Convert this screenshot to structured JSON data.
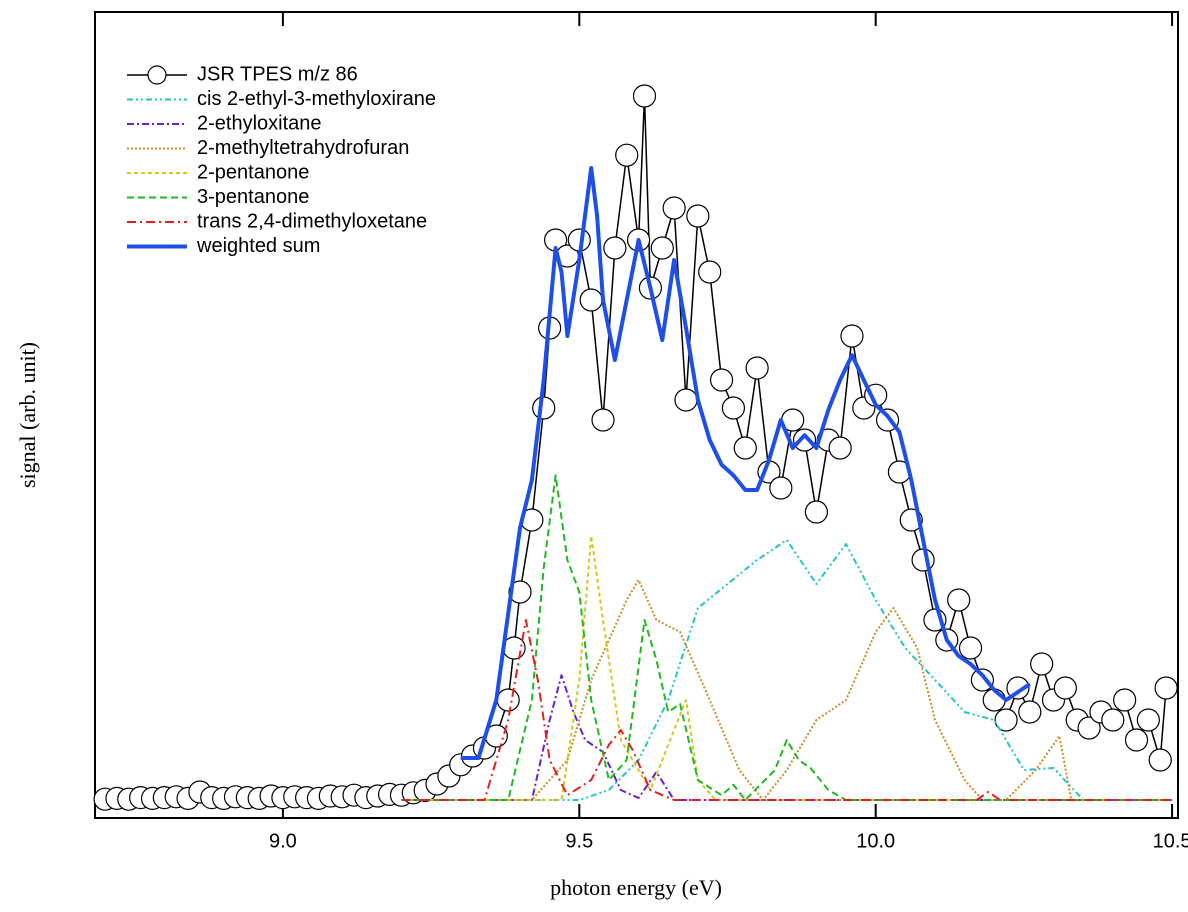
{
  "chart_data": {
    "type": "line",
    "xlabel": "photon energy (eV)",
    "ylabel": "signal (arb. unit)",
    "xlim": [
      8.683,
      10.51
    ],
    "ylim": [
      -2.25,
      98.5
    ],
    "xticks": [
      {
        "value": 9,
        "label": "9.0"
      },
      9.5,
      {
        "value": 10,
        "label": "10.0"
      },
      10.5
    ],
    "legend": "upper-left",
    "series": [
      {
        "name": "JSR TPES m/z 86",
        "color": "#000000",
        "style": "markers",
        "x": [
          8.7,
          8.72,
          8.74,
          8.76,
          8.78,
          8.8,
          8.82,
          8.84,
          8.86,
          8.88,
          8.9,
          8.92,
          8.94,
          8.96,
          8.98,
          9.0,
          9.02,
          9.04,
          9.06,
          9.08,
          9.1,
          9.12,
          9.14,
          9.16,
          9.18,
          9.2,
          9.22,
          9.24,
          9.26,
          9.28,
          9.3,
          9.32,
          9.34,
          9.36,
          9.38,
          9.39,
          9.4,
          9.42,
          9.44,
          9.45,
          9.46,
          9.48,
          9.5,
          9.52,
          9.54,
          9.56,
          9.58,
          9.6,
          9.61,
          9.62,
          9.64,
          9.66,
          9.68,
          9.7,
          9.72,
          9.74,
          9.76,
          9.78,
          9.8,
          9.82,
          9.84,
          9.86,
          9.88,
          9.9,
          9.92,
          9.94,
          9.96,
          9.98,
          10.0,
          10.02,
          10.04,
          10.06,
          10.08,
          10.1,
          10.12,
          10.14,
          10.16,
          10.18,
          10.2,
          10.22,
          10.24,
          10.26,
          10.28,
          10.3,
          10.32,
          10.34,
          10.36,
          10.38,
          10.4,
          10.42,
          10.44,
          10.46,
          10.48,
          10.49
        ],
        "values": [
          0.1,
          0.2,
          0.1,
          0.3,
          0.2,
          0.3,
          0.4,
          0.2,
          1.0,
          0.3,
          0.2,
          0.4,
          0.3,
          0.2,
          0.5,
          0.3,
          0.4,
          0.3,
          0.2,
          0.5,
          0.4,
          0.6,
          0.3,
          0.5,
          0.7,
          0.6,
          0.9,
          1.2,
          2.0,
          3.0,
          4.4,
          5.5,
          6.5,
          8,
          12.5,
          19,
          26,
          35,
          49,
          59,
          70,
          68,
          70,
          62.5,
          47.5,
          69,
          80.6,
          70,
          88,
          64,
          69,
          74,
          50,
          73,
          66,
          52.5,
          49,
          44,
          54,
          41,
          39,
          47.5,
          45,
          36,
          45,
          44,
          58,
          49,
          50.6,
          47.5,
          41,
          35,
          30,
          22.5,
          20,
          25,
          19,
          15,
          12.5,
          10,
          14,
          11,
          17,
          12.5,
          14,
          10,
          9,
          11,
          10,
          12.5,
          7.5,
          10,
          5,
          14
        ]
      },
      {
        "name": "cis 2-ethyl-3-methyloxirane",
        "color": "#22c5c5",
        "style": "dash-dot-dot",
        "x": [
          9.2,
          9.5,
          9.55,
          9.6,
          9.65,
          9.7,
          9.75,
          9.8,
          9.85,
          9.9,
          9.95,
          10.0,
          10.05,
          10.1,
          10.15,
          10.2,
          10.25,
          10.3,
          10.35,
          10.5
        ],
        "values": [
          0,
          0,
          1.25,
          5,
          12.5,
          24,
          27,
          30,
          32.5,
          27,
          32,
          25,
          19,
          15,
          11,
          10,
          3.75,
          4,
          0,
          0
        ]
      },
      {
        "name": "2-ethyloxitane",
        "color": "#6a1fc8",
        "style": "dash-dot",
        "x": [
          9.2,
          9.42,
          9.45,
          9.47,
          9.49,
          9.51,
          9.54,
          9.57,
          9.6,
          9.63,
          9.66,
          10.5
        ],
        "values": [
          0,
          0,
          10,
          15.6,
          11,
          7.5,
          6,
          1.25,
          0.25,
          3.5,
          0,
          0
        ]
      },
      {
        "name": "2-methyltetrahydrofuran",
        "color": "#d08c20",
        "style": "dotted",
        "x": [
          9.2,
          9.42,
          9.48,
          9.52,
          9.55,
          9.58,
          9.6,
          9.63,
          9.67,
          9.72,
          9.77,
          9.81,
          9.85,
          9.9,
          9.95,
          10.0,
          10.03,
          10.07,
          10.1,
          10.15,
          10.18,
          10.22,
          10.27,
          10.31,
          10.33,
          10.5
        ],
        "values": [
          0,
          0,
          5,
          15,
          20,
          25,
          27.5,
          22.5,
          21,
          12.5,
          3.75,
          0,
          3.75,
          10,
          12.5,
          21,
          24,
          19,
          10,
          2.5,
          0,
          0,
          3.75,
          8,
          0,
          0
        ]
      },
      {
        "name": "2-pentanone",
        "color": "#d4c620",
        "style": "short-dash",
        "x": [
          9.2,
          9.47,
          9.5,
          9.52,
          9.54,
          9.57,
          9.62,
          9.66,
          9.68,
          9.7,
          9.73,
          10.5
        ],
        "values": [
          0,
          0,
          15,
          33,
          22.5,
          7.5,
          1.25,
          8.75,
          12.5,
          2.5,
          0,
          0
        ]
      },
      {
        "name": "3-pentanone",
        "color": "#22b822",
        "style": "dashed",
        "x": [
          9.2,
          9.38,
          9.42,
          9.44,
          9.46,
          9.48,
          9.5,
          9.52,
          9.55,
          9.58,
          9.61,
          9.63,
          9.65,
          9.67,
          9.7,
          9.74,
          9.76,
          9.78,
          9.83,
          9.85,
          9.87,
          9.89,
          9.92,
          9.95,
          10.5
        ],
        "values": [
          0,
          0,
          12.5,
          29,
          40.6,
          30,
          26,
          12.5,
          2.5,
          5,
          22.5,
          17.5,
          11,
          12,
          2.5,
          0.6,
          1.9,
          0,
          3.75,
          7.5,
          5,
          4,
          1.25,
          0,
          0
        ]
      },
      {
        "name": "trans 2,4-dimethyloxetane",
        "color": "#e02020",
        "style": "long-dash-dot",
        "x": [
          9.2,
          9.34,
          9.38,
          9.41,
          9.43,
          9.45,
          9.48,
          9.52,
          9.55,
          9.57,
          9.59,
          9.62,
          9.66,
          10.17,
          10.19,
          10.21,
          10.5
        ],
        "values": [
          0,
          0,
          10,
          22.5,
          15,
          5,
          0.6,
          2.5,
          6.9,
          8.75,
          6.25,
          1.25,
          0,
          0,
          1,
          0,
          0
        ]
      },
      {
        "name": "weighted sum",
        "color": "#1f4fe8",
        "style": "solid",
        "x": [
          9.3,
          9.33,
          9.36,
          9.4,
          9.42,
          9.44,
          9.46,
          9.47,
          9.48,
          9.5,
          9.52,
          9.53,
          9.54,
          9.56,
          9.58,
          9.6,
          9.62,
          9.64,
          9.66,
          9.68,
          9.7,
          9.72,
          9.74,
          9.76,
          9.78,
          9.8,
          9.82,
          9.84,
          9.86,
          9.88,
          9.9,
          9.92,
          9.94,
          9.96,
          9.98,
          10.0,
          10.02,
          10.04,
          10.06,
          10.08,
          10.1,
          10.12,
          10.14,
          10.16,
          10.18,
          10.2,
          10.22,
          10.24,
          10.26
        ],
        "values": [
          5.25,
          5.25,
          12.5,
          34,
          40,
          52.5,
          69,
          66,
          58,
          67.5,
          79,
          73,
          62.5,
          55,
          62.5,
          70,
          64,
          57.5,
          67.5,
          59,
          50,
          45,
          41.9,
          40.6,
          38.75,
          38.75,
          42.5,
          47.5,
          44,
          45.6,
          44,
          48.75,
          52.5,
          55.6,
          52.5,
          49.4,
          48,
          46,
          40,
          32.5,
          25,
          20,
          18,
          17,
          15.6,
          13.75,
          12.5,
          13.5,
          14.5
        ]
      }
    ]
  }
}
